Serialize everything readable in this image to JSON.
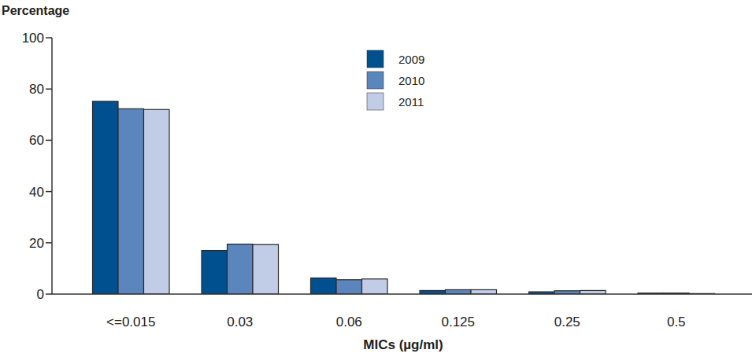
{
  "chart_data": {
    "type": "bar",
    "y_label": "Percentage",
    "x_label": "MICs (µg/ml)",
    "categories": [
      "<=0.015",
      "0.03",
      "0.06",
      "0.125",
      "0.25",
      "0.5"
    ],
    "series": [
      {
        "name": "2009",
        "color": "#00508f",
        "values": [
          75.2,
          17,
          6.3,
          1.4,
          0.9,
          0.4
        ]
      },
      {
        "name": "2010",
        "color": "#5b85bd",
        "values": [
          72.3,
          19.5,
          5.6,
          1.7,
          1.3,
          0.4
        ]
      },
      {
        "name": "2011",
        "color": "#c1cce6",
        "values": [
          72,
          19.4,
          5.9,
          1.7,
          1.4,
          0.2
        ]
      }
    ],
    "ylim": [
      0,
      100
    ],
    "yticks": [
      0,
      20,
      40,
      60,
      80,
      100
    ],
    "grid": false,
    "legend": "top"
  }
}
